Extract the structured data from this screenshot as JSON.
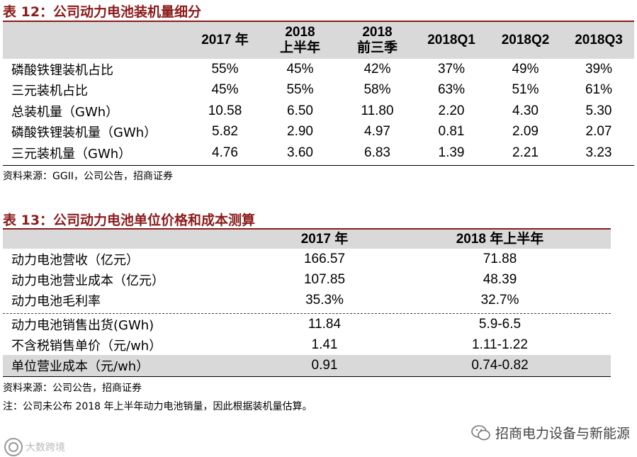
{
  "table12": {
    "title": "表 12：公司动力电池装机量细分",
    "columns": [
      [
        "2017 年"
      ],
      [
        "2018",
        "上半年"
      ],
      [
        "2018",
        "前三季"
      ],
      [
        "2018Q1"
      ],
      [
        "2018Q2"
      ],
      [
        "2018Q3"
      ]
    ],
    "rows": [
      {
        "label": "磷酸铁锂装机占比",
        "values": [
          "55%",
          "45%",
          "42%",
          "37%",
          "49%",
          "39%"
        ]
      },
      {
        "label": "三元装机占比",
        "values": [
          "45%",
          "55%",
          "58%",
          "63%",
          "51%",
          "61%"
        ]
      },
      {
        "label": "总装机量（GWh）",
        "values": [
          "10.58",
          "6.50",
          "11.80",
          "2.20",
          "4.30",
          "5.30"
        ]
      },
      {
        "label": "磷酸铁锂装机量（GWh）",
        "values": [
          "5.82",
          "2.90",
          "4.97",
          "0.81",
          "2.09",
          "2.07"
        ]
      },
      {
        "label": "三元装机量（GWh）",
        "values": [
          "4.76",
          "3.60",
          "6.83",
          "1.39",
          "2.21",
          "3.23"
        ]
      }
    ],
    "source": "资料来源：GGII，公司公告，招商证券"
  },
  "table13": {
    "title": "表 13：公司动力电池单位价格和成本测算",
    "columns": [
      "2017 年",
      "2018 年上半年"
    ],
    "rows_group1": [
      {
        "label": "动力电池营收（亿元）",
        "values": [
          "166.57",
          "71.88"
        ]
      },
      {
        "label": "动力电池营业成本（亿元）",
        "values": [
          "107.85",
          "48.39"
        ]
      },
      {
        "label": "动力电池毛利率",
        "values": [
          "35.3%",
          "32.7%"
        ]
      }
    ],
    "rows_group2": [
      {
        "label": "动力电池销售出货(GWh)",
        "values": [
          "11.84",
          "5.9-6.5"
        ]
      },
      {
        "label": "不含税销售单价（元/wh）",
        "values": [
          "1.41",
          "1.11-1.22"
        ]
      }
    ],
    "row_highlight": {
      "label": "单位营业成本（元/wh）",
      "values": [
        "0.91",
        "0.74-0.82"
      ]
    },
    "source": "资料来源：公司公告，招商证券",
    "note": "注：公司未公布 2018 年上半年动力电池销量，因此根据装机量估算。"
  },
  "watermark_right": "招商电力设备与新能源",
  "watermark_left": "大数跨境",
  "colors": {
    "title": "#8b1a1a",
    "header_bg": "#d9d9d9",
    "highlight_bg": "#d9d9d9"
  }
}
